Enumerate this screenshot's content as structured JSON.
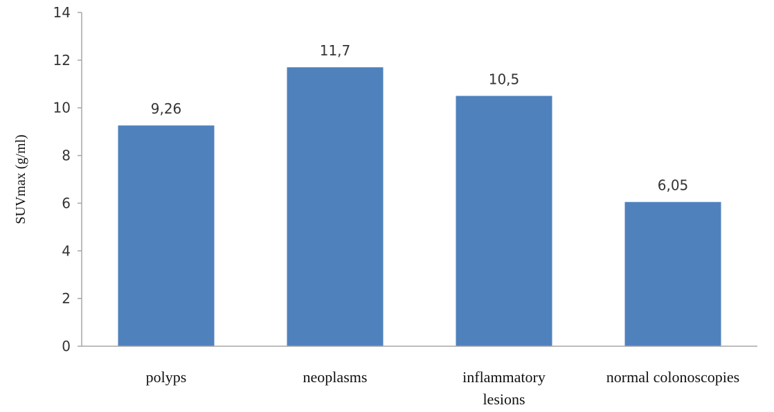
{
  "chart_data": {
    "type": "bar",
    "categories": [
      [
        "polyps"
      ],
      [
        "neoplasms"
      ],
      [
        "inflammatory",
        "lesions"
      ],
      [
        "normal colonoscopies"
      ]
    ],
    "values": [
      9.26,
      11.7,
      10.5,
      6.05
    ],
    "data_labels": [
      "9,26",
      "11,7",
      "10,5",
      "6,05"
    ],
    "title": "",
    "xlabel": "",
    "ylabel": "SUVmax (g/ml)",
    "ylim": [
      0,
      14
    ],
    "yticks": [
      "0",
      "2",
      "4",
      "6",
      "8",
      "10",
      "12",
      "14"
    ],
    "grid": false,
    "legend": "none",
    "colors": {
      "bar": "#4F81BD",
      "axis": "#A6A6A6"
    }
  }
}
